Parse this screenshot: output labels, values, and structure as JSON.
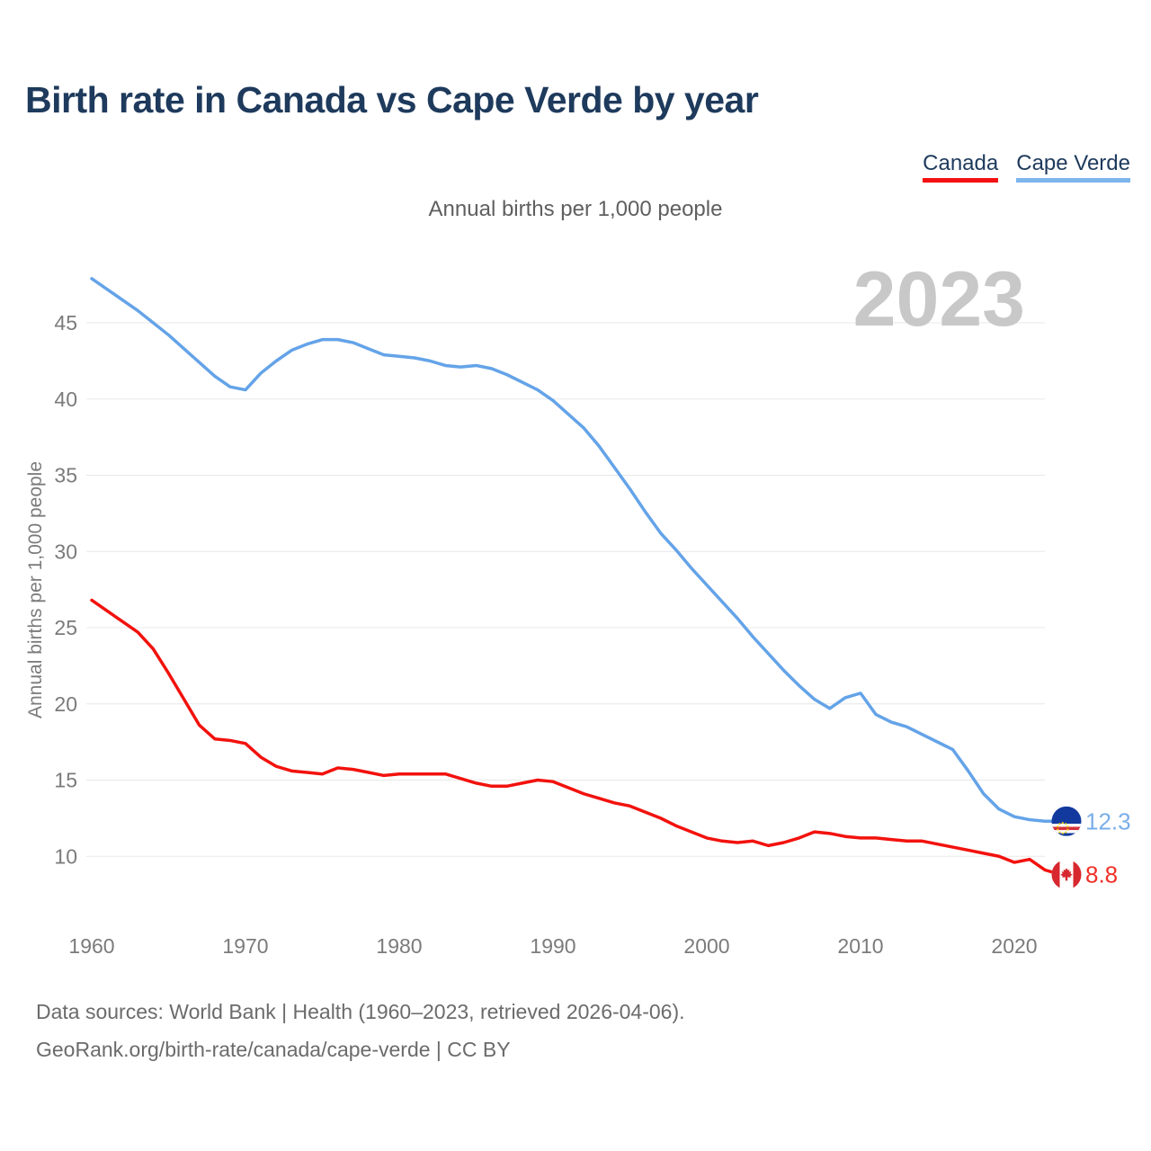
{
  "title": "Birth rate in Canada vs Cape Verde by year",
  "subtitle": "Annual births per 1,000 people",
  "legend": {
    "canada": "Canada",
    "cape_verde": "Cape Verde"
  },
  "footer": {
    "line1": "Data sources: World Bank | Health (1960–2023, retrieved 2026-04-06).",
    "line2": "GeoRank.org/birth-rate/canada/cape-verde | CC BY"
  },
  "colors": {
    "title_text": "#1e3a5c",
    "axis_text": "#7b7b7b",
    "gridline": "#e8e8e8",
    "watermark": "#c8c8c8",
    "footer_text": "#6b6b6b"
  },
  "chart_data": {
    "type": "line",
    "title": "Birth rate in Canada vs Cape Verde by year",
    "ylabel": "Annual births per 1,000 people",
    "watermark_year": "2023",
    "grid": "horizontal",
    "legend_position": "top-right",
    "xlim": [
      1960,
      2023
    ],
    "ylim": [
      8,
      48
    ],
    "xticks": [
      1960,
      1970,
      1980,
      1990,
      2000,
      2010,
      2020
    ],
    "yticks": [
      10,
      15,
      20,
      25,
      30,
      35,
      40,
      45
    ],
    "x": [
      1960,
      1961,
      1962,
      1963,
      1964,
      1965,
      1966,
      1967,
      1968,
      1969,
      1970,
      1971,
      1972,
      1973,
      1974,
      1975,
      1976,
      1977,
      1978,
      1979,
      1980,
      1981,
      1982,
      1983,
      1984,
      1985,
      1986,
      1987,
      1988,
      1989,
      1990,
      1991,
      1992,
      1993,
      1994,
      1995,
      1996,
      1997,
      1998,
      1999,
      2000,
      2001,
      2002,
      2003,
      2004,
      2005,
      2006,
      2007,
      2008,
      2009,
      2010,
      2011,
      2012,
      2013,
      2014,
      2015,
      2016,
      2017,
      2018,
      2019,
      2020,
      2021,
      2022,
      2023
    ],
    "series": [
      {
        "name": "Cape Verde",
        "line_color": "#64a3e8",
        "value_color": "#7aaee8",
        "legend_underline_color": "#7cb5ec",
        "flag": "cape-verde",
        "end_label": "12.3",
        "values": [
          47.9,
          47.2,
          46.5,
          45.8,
          45.0,
          44.2,
          43.3,
          42.4,
          41.5,
          40.8,
          40.6,
          41.7,
          42.5,
          43.2,
          43.6,
          43.9,
          43.9,
          43.7,
          43.3,
          42.9,
          42.8,
          42.7,
          42.5,
          42.2,
          42.1,
          42.2,
          42.0,
          41.6,
          41.1,
          40.6,
          39.9,
          39.0,
          38.1,
          36.9,
          35.5,
          34.1,
          32.6,
          31.2,
          30.1,
          28.9,
          27.8,
          26.7,
          25.6,
          24.4,
          23.3,
          22.2,
          21.2,
          20.3,
          19.7,
          20.4,
          20.7,
          19.3,
          18.8,
          18.5,
          18.0,
          17.5,
          17.0,
          15.6,
          14.1,
          13.1,
          12.6,
          12.4,
          12.3,
          12.3
        ]
      },
      {
        "name": "Canada",
        "line_color": "#f2120d",
        "value_color": "#f03028",
        "legend_underline_color": "#f41111",
        "flag": "canada",
        "end_label": "8.8",
        "values": [
          26.8,
          26.1,
          25.4,
          24.7,
          23.6,
          22.0,
          20.3,
          18.6,
          17.7,
          17.6,
          17.4,
          16.5,
          15.9,
          15.6,
          15.5,
          15.4,
          15.8,
          15.7,
          15.5,
          15.3,
          15.4,
          15.4,
          15.4,
          15.4,
          15.1,
          14.8,
          14.6,
          14.6,
          14.8,
          15.0,
          14.9,
          14.5,
          14.1,
          13.8,
          13.5,
          13.3,
          12.9,
          12.5,
          12.0,
          11.6,
          11.2,
          11.0,
          10.9,
          11.0,
          10.7,
          10.9,
          11.2,
          11.6,
          11.5,
          11.3,
          11.2,
          11.2,
          11.1,
          11.0,
          11.0,
          10.8,
          10.6,
          10.4,
          10.2,
          10.0,
          9.6,
          9.8,
          9.1,
          8.8
        ]
      }
    ]
  }
}
